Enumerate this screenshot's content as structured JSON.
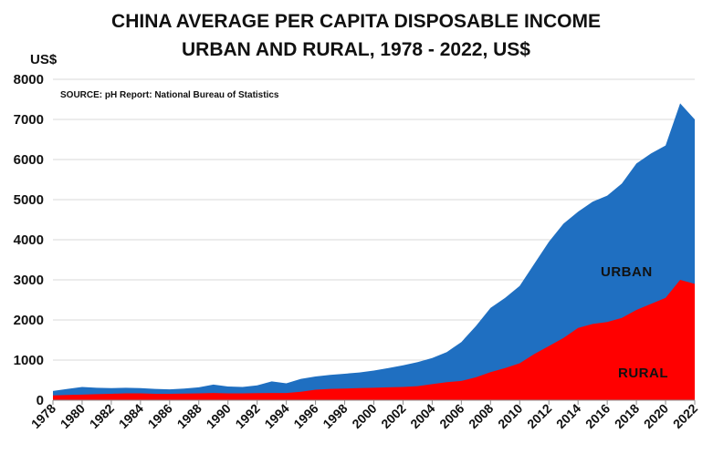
{
  "chart_data": {
    "type": "area",
    "title": "CHINA AVERAGE PER CAPITA DISPOSABLE INCOME",
    "subtitle": "URBAN AND RURAL, 1978 - 2022, US$",
    "ylabel": "US$",
    "source": "SOURCE: pH Report: National Bureau of Statistics",
    "ylim": [
      0,
      8000
    ],
    "yticks": [
      "0",
      "1000",
      "2000",
      "3000",
      "4000",
      "5000",
      "6000",
      "7000",
      "8000"
    ],
    "xticks": [
      "1978",
      "1980",
      "1982",
      "1984",
      "1986",
      "1988",
      "1990",
      "1992",
      "1994",
      "1996",
      "1998",
      "2000",
      "2002",
      "2004",
      "2006",
      "2008",
      "2010",
      "2012",
      "2014",
      "2016",
      "2018",
      "2020",
      "2022"
    ],
    "grid": true,
    "x": [
      1978,
      1979,
      1980,
      1981,
      1982,
      1983,
      1984,
      1985,
      1986,
      1987,
      1988,
      1989,
      1990,
      1991,
      1992,
      1993,
      1994,
      1995,
      1996,
      1997,
      1998,
      1999,
      2000,
      2001,
      2002,
      2003,
      2004,
      2005,
      2006,
      2007,
      2008,
      2009,
      2010,
      2011,
      2012,
      2013,
      2014,
      2015,
      2016,
      2017,
      2018,
      2019,
      2020,
      2021,
      2022
    ],
    "series": [
      {
        "name": "URBAN",
        "color": "#1f6fc1",
        "values": [
          230,
          280,
          330,
          310,
          300,
          310,
          300,
          280,
          270,
          290,
          320,
          390,
          340,
          330,
          370,
          470,
          420,
          530,
          590,
          630,
          660,
          690,
          740,
          800,
          870,
          950,
          1050,
          1200,
          1450,
          1850,
          2300,
          2550,
          2850,
          3400,
          3950,
          4400,
          4700,
          4950,
          5100,
          5400,
          5900,
          6150,
          6350,
          7400,
          7000
        ]
      },
      {
        "name": "RURAL",
        "color": "#ff0000",
        "values": [
          120,
          130,
          140,
          150,
          160,
          170,
          170,
          160,
          160,
          165,
          170,
          180,
          170,
          170,
          175,
          180,
          180,
          210,
          260,
          280,
          290,
          300,
          310,
          320,
          330,
          350,
          400,
          450,
          480,
          570,
          700,
          800,
          920,
          1150,
          1350,
          1550,
          1800,
          1900,
          1950,
          2050,
          2250,
          2400,
          2550,
          3000,
          2900
        ]
      }
    ]
  }
}
